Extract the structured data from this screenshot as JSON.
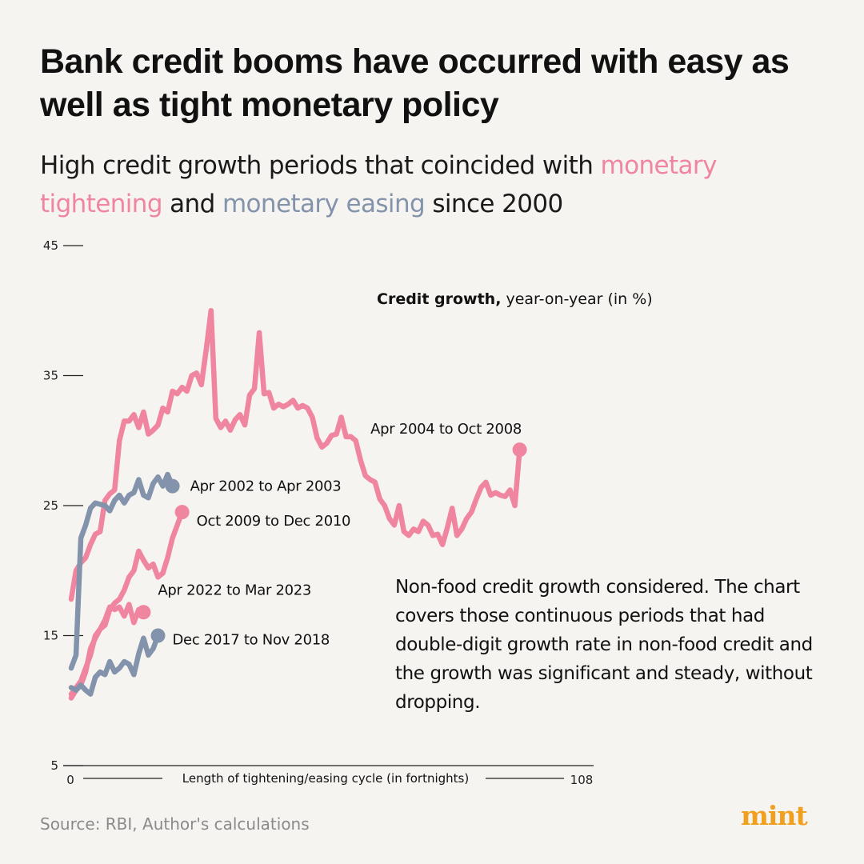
{
  "header": {
    "title": "Bank credit booms have occurred with easy as well as tight monetary policy",
    "subtitle_parts": [
      {
        "text": "High credit growth periods that coincided with ",
        "color": "#1a1a1a"
      },
      {
        "text": "monetary tightening",
        "color": "#f0859f"
      },
      {
        "text": " and ",
        "color": "#1a1a1a"
      },
      {
        "text": "monetary easing",
        "color": "#8393ab"
      },
      {
        "text": " since 2000",
        "color": "#1a1a1a"
      }
    ]
  },
  "colors": {
    "tightening": "#f0859f",
    "easing": "#8393ab",
    "axis": "#222222"
  },
  "chart_data": {
    "type": "line",
    "legend_bold": "Credit growth,",
    "legend_rest": " year-on-year (in %)",
    "ylim": [
      5,
      45
    ],
    "yticks": [
      "5",
      "15",
      "25",
      "35",
      "45"
    ],
    "xlim": [
      0,
      108
    ],
    "xticks": [
      "0",
      "108"
    ],
    "xlabel": "Length of tightening/easing cycle (in fortnights)",
    "series": [
      {
        "name": "Apr 2004 to Oct 2008",
        "kind": "tightening",
        "values": [
          17.8,
          20.0,
          20.6,
          21.0,
          22.0,
          22.8,
          23.0,
          25.4,
          25.9,
          26.2,
          30.0,
          31.5,
          31.5,
          32.0,
          31.0,
          32.2,
          30.5,
          30.8,
          31.2,
          32.5,
          32.2,
          33.8,
          33.6,
          34.1,
          33.8,
          35.0,
          35.2,
          34.3,
          37.0,
          40.0,
          31.7,
          31.0,
          31.5,
          30.8,
          31.6,
          32.0,
          31.2,
          33.5,
          34.0,
          38.3,
          33.6,
          33.7,
          32.5,
          32.8,
          32.6,
          32.8,
          33.1,
          32.5,
          32.7,
          32.5,
          31.8,
          30.2,
          29.5,
          29.8,
          30.4,
          30.5,
          31.8,
          30.3,
          30.3,
          30.0,
          28.5,
          27.3,
          27.0,
          26.8,
          25.5,
          25.0,
          24.0,
          23.5,
          25.0,
          23.0,
          22.7,
          23.2,
          23.0,
          23.8,
          23.5,
          22.7,
          22.8,
          22.0,
          23.3,
          24.8,
          22.7,
          23.2,
          24.0,
          24.5,
          25.5,
          26.4,
          26.8,
          25.8,
          26.0,
          25.8,
          25.7,
          26.2,
          25.0,
          29.3
        ],
        "end_label": "Apr 2004 to Oct 2008"
      },
      {
        "name": "Apr 2002 to Apr 2003",
        "kind": "easing",
        "values": [
          12.5,
          13.5,
          22.5,
          23.5,
          24.8,
          25.2,
          25.1,
          25.0,
          24.6,
          25.4,
          25.8,
          25.2,
          25.8,
          26.0,
          27.0,
          25.8,
          25.6,
          26.7,
          27.2,
          26.5,
          27.4,
          26.5
        ],
        "end_label": "Apr 2002 to Apr 2003"
      },
      {
        "name": "Oct 2009 to Dec 2010",
        "kind": "tightening",
        "values": [
          10.2,
          10.8,
          11.2,
          12.2,
          14.0,
          14.8,
          15.5,
          15.8,
          17.0,
          17.5,
          17.8,
          18.5,
          19.5,
          20.0,
          21.5,
          20.8,
          20.2,
          20.5,
          19.5,
          19.8,
          21.0,
          22.5,
          23.5,
          24.5
        ],
        "end_label": "Oct 2009 to Dec 2010"
      },
      {
        "name": "Apr 2022 to Mar 2023",
        "kind": "tightening",
        "values": [
          10.5,
          11.0,
          11.5,
          12.5,
          13.5,
          15.0,
          15.5,
          16.2,
          17.2,
          17.0,
          17.2,
          16.5,
          17.4,
          16.0,
          17.0,
          16.8
        ],
        "end_label": "Apr 2022 to Mar 2023"
      },
      {
        "name": "Dec 2017 to Nov 2018",
        "kind": "easing",
        "values": [
          11.0,
          10.8,
          11.2,
          10.8,
          10.5,
          11.8,
          12.2,
          12.0,
          13.0,
          12.2,
          12.5,
          13.0,
          12.8,
          12.0,
          13.6,
          14.8,
          13.5,
          14.0,
          15.0
        ],
        "end_label": "Dec 2017 to Nov 2018"
      }
    ],
    "note": "Non-food credit growth considered. The chart covers those continuous periods that had double-digit growth rate in non-food credit and the growth was significant and steady, without dropping."
  },
  "footer": {
    "source": "Source: RBI, Author's calculations",
    "logo": "mint"
  }
}
